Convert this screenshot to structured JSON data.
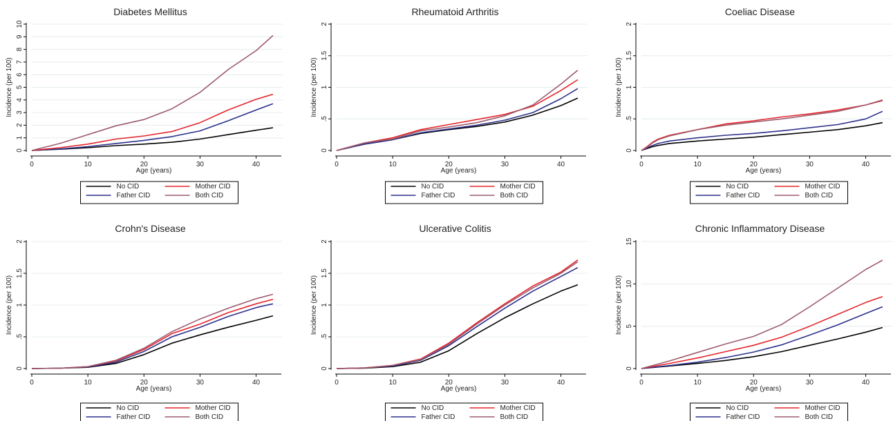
{
  "chart_data": [
    {
      "type": "line",
      "title": "Diabetes Mellitus",
      "xlabel": "Age (years)",
      "ylabel": "Incidence (per 100)",
      "xlim": [
        0,
        44
      ],
      "ylim": [
        0,
        10
      ],
      "xticks": [
        0,
        10,
        20,
        30,
        40
      ],
      "xtick_labels": [
        "0",
        "10",
        "20",
        "30",
        "40"
      ],
      "yticks": [
        0,
        1,
        2,
        3,
        4,
        5,
        6,
        7,
        8,
        9,
        10
      ],
      "ytick_labels": [
        "0",
        "1",
        "2",
        "3",
        "4",
        "5",
        "6",
        "7",
        "8",
        "9",
        "10"
      ],
      "grid": true,
      "legend_position": "bottom",
      "x": [
        0,
        5,
        10,
        15,
        20,
        25,
        30,
        35,
        40,
        43
      ],
      "series": [
        {
          "name": "No CID",
          "color": "#000000",
          "values": [
            0,
            0.1,
            0.22,
            0.38,
            0.5,
            0.65,
            0.9,
            1.25,
            1.6,
            1.8
          ]
        },
        {
          "name": "Mother CID",
          "color": "#e3232a",
          "values": [
            0,
            0.22,
            0.5,
            0.9,
            1.15,
            1.5,
            2.2,
            3.2,
            4.05,
            4.45
          ]
        },
        {
          "name": "Father CID",
          "color": "#2b2f8a",
          "values": [
            0,
            0.12,
            0.3,
            0.55,
            0.8,
            1.1,
            1.55,
            2.35,
            3.2,
            3.7
          ]
        },
        {
          "name": "Both CID",
          "color": "#9c5a6c",
          "values": [
            0,
            0.55,
            1.25,
            1.95,
            2.45,
            3.3,
            4.6,
            6.4,
            7.9,
            9.1
          ]
        }
      ]
    },
    {
      "type": "line",
      "title": "Rheumatoid Arthritis",
      "xlabel": "Age (years)",
      "ylabel": "Incidence (per 100)",
      "xlim": [
        0,
        44
      ],
      "ylim": [
        0,
        2
      ],
      "xticks": [
        0,
        10,
        20,
        30,
        40
      ],
      "xtick_labels": [
        "0",
        "10",
        "20",
        "30",
        "40"
      ],
      "yticks": [
        0,
        0.5,
        1,
        1.5,
        2
      ],
      "ytick_labels": [
        "0",
        ".5",
        "1",
        "1.5",
        "2"
      ],
      "grid": true,
      "legend_position": "bottom",
      "x": [
        0,
        5,
        10,
        15,
        20,
        25,
        30,
        35,
        40,
        43
      ],
      "series": [
        {
          "name": "No CID",
          "color": "#000000",
          "values": [
            0,
            0.1,
            0.17,
            0.27,
            0.33,
            0.38,
            0.45,
            0.56,
            0.71,
            0.83
          ]
        },
        {
          "name": "Mother CID",
          "color": "#e3232a",
          "values": [
            0,
            0.12,
            0.2,
            0.33,
            0.41,
            0.49,
            0.57,
            0.7,
            0.95,
            1.12
          ]
        },
        {
          "name": "Father CID",
          "color": "#2b2f8a",
          "values": [
            0,
            0.1,
            0.17,
            0.28,
            0.34,
            0.4,
            0.48,
            0.6,
            0.82,
            0.98
          ]
        },
        {
          "name": "Both CID",
          "color": "#9c5a6c",
          "values": [
            0,
            0.12,
            0.18,
            0.31,
            0.37,
            0.44,
            0.55,
            0.72,
            1.05,
            1.27
          ]
        }
      ]
    },
    {
      "type": "line",
      "title": "Coeliac Disease",
      "xlabel": "Age (years)",
      "ylabel": "Incidence (per 100)",
      "xlim": [
        0,
        44
      ],
      "ylim": [
        0,
        2
      ],
      "xticks": [
        0,
        10,
        20,
        30,
        40
      ],
      "xtick_labels": [
        "0",
        "10",
        "20",
        "30",
        "40"
      ],
      "yticks": [
        0,
        0.5,
        1,
        1.5,
        2
      ],
      "ytick_labels": [
        "0",
        ".5",
        "1",
        "1.5",
        "2"
      ],
      "grid": true,
      "legend_position": "bottom",
      "x": [
        0,
        1,
        2,
        3,
        5,
        10,
        15,
        20,
        25,
        30,
        35,
        40,
        43
      ],
      "series": [
        {
          "name": "No CID",
          "color": "#000000",
          "values": [
            0,
            0.03,
            0.06,
            0.08,
            0.11,
            0.15,
            0.18,
            0.21,
            0.25,
            0.29,
            0.33,
            0.39,
            0.44
          ]
        },
        {
          "name": "Mother CID",
          "color": "#e3232a",
          "values": [
            0,
            0.06,
            0.13,
            0.18,
            0.24,
            0.33,
            0.42,
            0.47,
            0.53,
            0.58,
            0.64,
            0.72,
            0.79
          ]
        },
        {
          "name": "Father CID",
          "color": "#2b2f8a",
          "values": [
            0,
            0.04,
            0.08,
            0.11,
            0.15,
            0.2,
            0.24,
            0.27,
            0.31,
            0.36,
            0.41,
            0.5,
            0.62
          ]
        },
        {
          "name": "Both CID",
          "color": "#9c5a6c",
          "values": [
            0,
            0.05,
            0.12,
            0.17,
            0.23,
            0.33,
            0.4,
            0.45,
            0.5,
            0.56,
            0.62,
            0.72,
            0.8
          ]
        }
      ]
    },
    {
      "type": "line",
      "title": "Crohn's Disease",
      "xlabel": "Age (years)",
      "ylabel": "Incidence (per 100)",
      "xlim": [
        0,
        44
      ],
      "ylim": [
        0,
        2
      ],
      "xticks": [
        0,
        10,
        20,
        30,
        40
      ],
      "xtick_labels": [
        "0",
        "10",
        "20",
        "30",
        "40"
      ],
      "yticks": [
        0,
        0.5,
        1,
        1.5,
        2
      ],
      "ytick_labels": [
        "0",
        ".5",
        "1",
        "1.5",
        "2"
      ],
      "grid": true,
      "legend_position": "bottom",
      "x": [
        0,
        5,
        10,
        15,
        20,
        25,
        30,
        35,
        40,
        43
      ],
      "series": [
        {
          "name": "No CID",
          "color": "#000000",
          "values": [
            0,
            0.005,
            0.02,
            0.08,
            0.22,
            0.4,
            0.53,
            0.65,
            0.76,
            0.83
          ]
        },
        {
          "name": "Mother CID",
          "color": "#e3232a",
          "values": [
            0,
            0.005,
            0.03,
            0.12,
            0.3,
            0.55,
            0.7,
            0.88,
            1.02,
            1.09
          ]
        },
        {
          "name": "Father CID",
          "color": "#2b2f8a",
          "values": [
            0,
            0.005,
            0.025,
            0.1,
            0.27,
            0.5,
            0.65,
            0.82,
            0.96,
            1.02
          ]
        },
        {
          "name": "Both CID",
          "color": "#9c5a6c",
          "values": [
            0,
            0.005,
            0.03,
            0.13,
            0.32,
            0.58,
            0.78,
            0.95,
            1.1,
            1.17
          ]
        }
      ]
    },
    {
      "type": "line",
      "title": "Ulcerative Colitis",
      "xlabel": "Age (years)",
      "ylabel": "Incidence (per 100)",
      "xlim": [
        0,
        44
      ],
      "ylim": [
        0,
        2
      ],
      "xticks": [
        0,
        10,
        20,
        30,
        40
      ],
      "xtick_labels": [
        "0",
        "10",
        "20",
        "30",
        "40"
      ],
      "yticks": [
        0,
        0.5,
        1,
        1.5,
        2
      ],
      "ytick_labels": [
        "0",
        ".5",
        "1",
        "1.5",
        "2"
      ],
      "grid": true,
      "legend_position": "bottom",
      "x": [
        0,
        5,
        10,
        15,
        20,
        25,
        30,
        35,
        40,
        43
      ],
      "series": [
        {
          "name": "No CID",
          "color": "#000000",
          "values": [
            0,
            0.005,
            0.03,
            0.1,
            0.28,
            0.55,
            0.8,
            1.02,
            1.22,
            1.32
          ]
        },
        {
          "name": "Mother CID",
          "color": "#e3232a",
          "values": [
            0,
            0.01,
            0.05,
            0.15,
            0.4,
            0.72,
            1.02,
            1.3,
            1.52,
            1.71
          ]
        },
        {
          "name": "Father CID",
          "color": "#2b2f8a",
          "values": [
            0,
            0.01,
            0.04,
            0.13,
            0.36,
            0.66,
            0.95,
            1.22,
            1.45,
            1.59
          ]
        },
        {
          "name": "Both CID",
          "color": "#9c5a6c",
          "values": [
            0,
            0.01,
            0.05,
            0.14,
            0.38,
            0.7,
            1.0,
            1.27,
            1.5,
            1.68
          ]
        }
      ]
    },
    {
      "type": "line",
      "title": "Chronic Inflammatory Disease",
      "xlabel": "Age (years)",
      "ylabel": "Incidence (per 100)",
      "xlim": [
        0,
        44
      ],
      "ylim": [
        0,
        15
      ],
      "xticks": [
        0,
        10,
        20,
        30,
        40
      ],
      "xtick_labels": [
        "0",
        "10",
        "20",
        "30",
        "40"
      ],
      "yticks": [
        0,
        5,
        10,
        15
      ],
      "ytick_labels": [
        "0",
        "5",
        "10",
        "15"
      ],
      "grid": true,
      "legend_position": "bottom",
      "x": [
        0,
        5,
        10,
        15,
        20,
        25,
        30,
        35,
        40,
        43
      ],
      "series": [
        {
          "name": "No CID",
          "color": "#000000",
          "values": [
            0,
            0.3,
            0.6,
            0.95,
            1.4,
            2.0,
            2.75,
            3.5,
            4.3,
            4.85
          ]
        },
        {
          "name": "Mother CID",
          "color": "#e3232a",
          "values": [
            0,
            0.6,
            1.25,
            2.0,
            2.75,
            3.7,
            5.0,
            6.4,
            7.8,
            8.5
          ]
        },
        {
          "name": "Father CID",
          "color": "#2b2f8a",
          "values": [
            0,
            0.35,
            0.75,
            1.3,
            1.95,
            2.8,
            3.95,
            5.15,
            6.5,
            7.3
          ]
        },
        {
          "name": "Both CID",
          "color": "#9c5a6c",
          "values": [
            0,
            0.9,
            1.9,
            2.9,
            3.8,
            5.2,
            7.3,
            9.5,
            11.7,
            12.8
          ]
        }
      ]
    }
  ]
}
